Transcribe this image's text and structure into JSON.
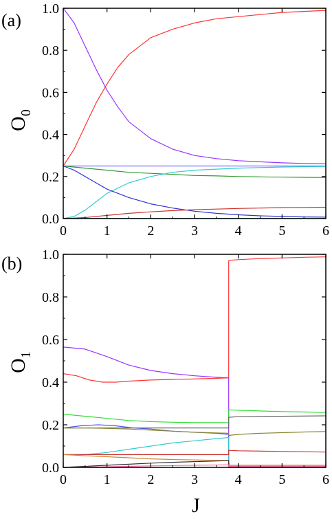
{
  "chart_data": [
    {
      "type": "line",
      "panel_label": "(a)",
      "ylabel": "O",
      "ylabel_sub": "0",
      "xlim": [
        0,
        6
      ],
      "ylim": [
        0,
        1
      ],
      "xticks": [
        "0",
        "1",
        "2",
        "3",
        "4",
        "5",
        "6"
      ],
      "yticks": [
        "0.0",
        "0.2",
        "0.4",
        "0.6",
        "0.8",
        "1.0"
      ],
      "series": [
        {
          "color": "#ff3333",
          "x": [
            0,
            0.25,
            0.5,
            0.75,
            1,
            1.25,
            1.5,
            2,
            2.5,
            3,
            3.5,
            4,
            4.5,
            5,
            5.5,
            6
          ],
          "y": [
            0.25,
            0.33,
            0.44,
            0.55,
            0.64,
            0.72,
            0.78,
            0.86,
            0.9,
            0.93,
            0.95,
            0.96,
            0.97,
            0.98,
            0.985,
            0.99
          ]
        },
        {
          "color": "#9933ff",
          "x": [
            0,
            0.25,
            0.5,
            0.75,
            1,
            1.25,
            1.5,
            2,
            2.5,
            3,
            3.5,
            4,
            4.5,
            5,
            5.5,
            6
          ],
          "y": [
            1.0,
            0.93,
            0.82,
            0.71,
            0.61,
            0.53,
            0.46,
            0.38,
            0.33,
            0.3,
            0.285,
            0.275,
            0.27,
            0.265,
            0.262,
            0.26
          ]
        },
        {
          "color": "#7070ff",
          "x": [
            0,
            1,
            2,
            3,
            4,
            5,
            6
          ],
          "y": [
            0.25,
            0.25,
            0.25,
            0.25,
            0.25,
            0.25,
            0.25
          ]
        },
        {
          "color": "#339933",
          "x": [
            0,
            0.5,
            1,
            1.5,
            2,
            2.5,
            3,
            3.5,
            4,
            4.5,
            5,
            5.5,
            6
          ],
          "y": [
            0.25,
            0.24,
            0.23,
            0.22,
            0.215,
            0.21,
            0.205,
            0.203,
            0.2,
            0.198,
            0.197,
            0.196,
            0.195
          ]
        },
        {
          "color": "#33cccc",
          "x": [
            0,
            0.25,
            0.5,
            0.75,
            1,
            1.5,
            2,
            2.5,
            3,
            3.5,
            4,
            5,
            6
          ],
          "y": [
            0,
            0.01,
            0.04,
            0.08,
            0.12,
            0.17,
            0.2,
            0.22,
            0.23,
            0.235,
            0.24,
            0.245,
            0.248
          ]
        },
        {
          "color": "#3333cc",
          "x": [
            0,
            0.25,
            0.5,
            0.75,
            1,
            1.5,
            2,
            2.5,
            3,
            3.5,
            4,
            4.5,
            5,
            5.5,
            6
          ],
          "y": [
            0.25,
            0.23,
            0.2,
            0.17,
            0.14,
            0.1,
            0.07,
            0.05,
            0.035,
            0.025,
            0.018,
            0.013,
            0.01,
            0.008,
            0.007
          ]
        },
        {
          "color": "#cc3333",
          "x": [
            0,
            0.5,
            1,
            1.5,
            2,
            2.5,
            3,
            3.5,
            4,
            4.5,
            5,
            5.5,
            6
          ],
          "y": [
            0,
            0.005,
            0.015,
            0.025,
            0.032,
            0.038,
            0.042,
            0.045,
            0.048,
            0.05,
            0.052,
            0.053,
            0.054
          ]
        },
        {
          "color": "#33aaaa",
          "x": [
            0,
            1,
            2,
            3,
            4,
            5,
            6
          ],
          "y": [
            0.001,
            0.001,
            0.001,
            0.001,
            0.001,
            0.001,
            0.001
          ]
        }
      ]
    },
    {
      "type": "line",
      "panel_label": "(b)",
      "ylabel": "O",
      "ylabel_sub": "1",
      "xlabel": "J",
      "xlim": [
        0,
        6
      ],
      "ylim": [
        0,
        1
      ],
      "xticks": [
        "0",
        "1",
        "2",
        "3",
        "4",
        "5",
        "6"
      ],
      "yticks": [
        "0.0",
        "0.2",
        "0.4",
        "0.6",
        "0.8",
        "1.0"
      ],
      "series": [
        {
          "color": "#ff3333",
          "x": [
            0,
            0.3,
            0.6,
            0.9,
            1.2,
            1.5,
            2,
            2.5,
            3,
            3.5,
            3.78,
            3.78,
            3.8,
            4,
            4.5,
            5,
            5.5,
            6
          ],
          "y": [
            0.44,
            0.43,
            0.41,
            0.4,
            0.4,
            0.405,
            0.41,
            0.413,
            0.415,
            0.418,
            0.42,
            0.97,
            0.972,
            0.975,
            0.98,
            0.983,
            0.986,
            0.988
          ]
        },
        {
          "color": "#9933ff",
          "x": [
            0,
            0.5,
            1,
            1.5,
            2,
            2.5,
            3,
            3.5,
            3.78,
            3.78,
            3.8
          ],
          "y": [
            0.565,
            0.555,
            0.52,
            0.48,
            0.455,
            0.44,
            0.43,
            0.423,
            0.42,
            0.02,
            0.015
          ]
        },
        {
          "color": "#33dd33",
          "x": [
            0,
            0.5,
            1,
            1.5,
            2,
            2.5,
            3,
            3.5,
            3.78,
            3.78,
            4,
            4.5,
            5,
            5.5,
            6
          ],
          "y": [
            0.25,
            0.24,
            0.23,
            0.22,
            0.215,
            0.212,
            0.21,
            0.21,
            0.21,
            0.27,
            0.268,
            0.265,
            0.262,
            0.26,
            0.258
          ]
        },
        {
          "color": "#5555ee",
          "x": [
            0,
            0.4,
            0.8,
            1.2,
            1.6,
            2,
            2.5,
            3,
            3.5,
            3.78,
            3.78,
            4,
            5,
            6
          ],
          "y": [
            0.185,
            0.195,
            0.2,
            0.195,
            0.185,
            0.18,
            0.17,
            0.165,
            0.16,
            0.155,
            0.005,
            0.005,
            0.005,
            0.005
          ]
        },
        {
          "color": "#666666",
          "x": [
            0,
            1,
            2,
            3,
            3.78,
            3.78,
            4,
            5,
            6
          ],
          "y": [
            0.185,
            0.185,
            0.185,
            0.185,
            0.185,
            0.235,
            0.238,
            0.24,
            0.242
          ]
        },
        {
          "color": "#888833",
          "x": [
            0,
            0.5,
            1,
            1.5,
            2,
            2.5,
            3,
            3.5,
            3.78,
            3.78,
            4,
            4.5,
            5,
            5.5,
            6
          ],
          "y": [
            0.185,
            0.185,
            0.183,
            0.18,
            0.175,
            0.17,
            0.165,
            0.162,
            0.16,
            0.15,
            0.155,
            0.16,
            0.163,
            0.166,
            0.168
          ]
        },
        {
          "color": "#33cccc",
          "x": [
            0,
            0.5,
            1,
            1.5,
            2,
            2.5,
            3,
            3.5,
            3.78,
            3.78,
            4,
            5,
            6
          ],
          "y": [
            0.06,
            0.06,
            0.07,
            0.085,
            0.1,
            0.115,
            0.125,
            0.135,
            0.14,
            0.003,
            0.003,
            0.003,
            0.003
          ]
        },
        {
          "color": "#cc3333",
          "x": [
            0,
            1,
            2,
            3,
            3.78,
            3.78,
            4,
            5,
            6
          ],
          "y": [
            0.06,
            0.06,
            0.06,
            0.06,
            0.06,
            0.08,
            0.078,
            0.075,
            0.072
          ]
        },
        {
          "color": "#cc8833",
          "x": [
            0,
            0.5,
            1,
            1.5,
            2,
            2.5,
            3,
            3.5,
            3.78,
            3.78,
            4,
            5,
            6
          ],
          "y": [
            0.06,
            0.055,
            0.05,
            0.045,
            0.04,
            0.037,
            0.035,
            0.033,
            0.032,
            0.01,
            0.01,
            0.01,
            0.01
          ]
        },
        {
          "color": "#333333",
          "x": [
            0,
            0.5,
            1,
            1.5,
            2,
            2.5,
            3,
            3.5,
            3.78,
            3.78,
            4,
            5,
            6
          ],
          "y": [
            0.0,
            0.005,
            0.01,
            0.015,
            0.02,
            0.024,
            0.027,
            0.03,
            0.032,
            0.0,
            0.0,
            0.0,
            0.0
          ]
        },
        {
          "color": "#ff66aa",
          "x": [
            0,
            1,
            2,
            3,
            3.78,
            3.78,
            4,
            5,
            6
          ],
          "y": [
            0.0,
            0.003,
            0.007,
            0.01,
            0.012,
            0.005,
            0.005,
            0.005,
            0.005
          ]
        }
      ]
    }
  ]
}
